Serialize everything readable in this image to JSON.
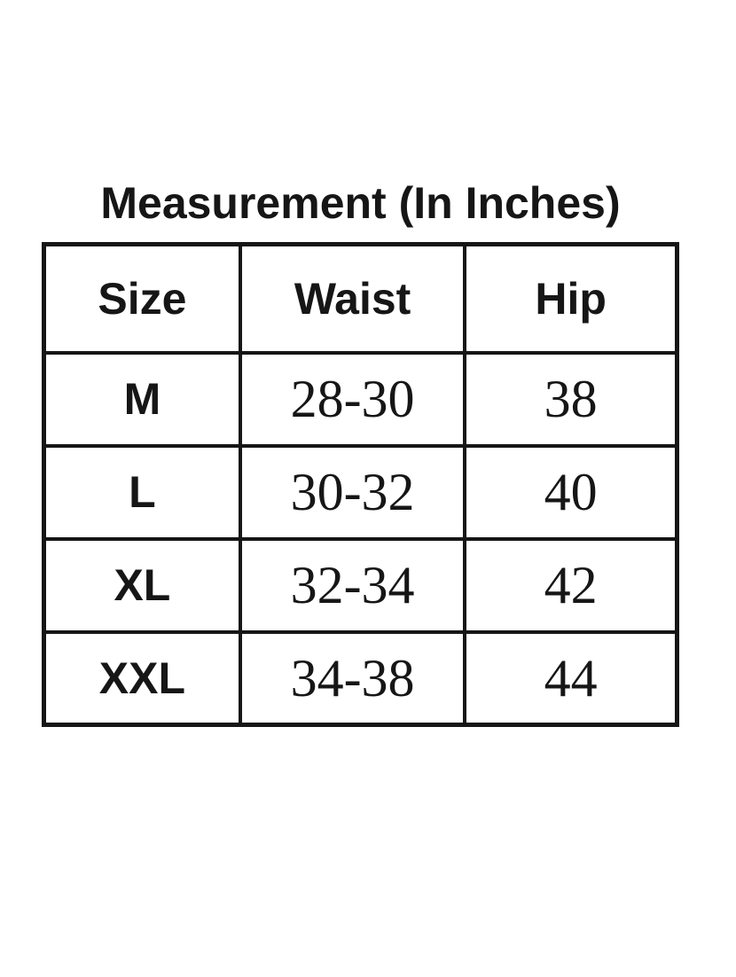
{
  "colors": {
    "background": "#ffffff",
    "text": "#161616",
    "border": "#161616"
  },
  "chart_data": {
    "type": "table",
    "title": "Measurement (In Inches)",
    "columns": [
      "Size",
      "Waist",
      "Hip"
    ],
    "rows": [
      [
        "M",
        "28-30",
        "38"
      ],
      [
        "L",
        "30-32",
        "40"
      ],
      [
        "XL",
        "32-34",
        "42"
      ],
      [
        "XXL",
        "34-38",
        "44"
      ]
    ]
  }
}
